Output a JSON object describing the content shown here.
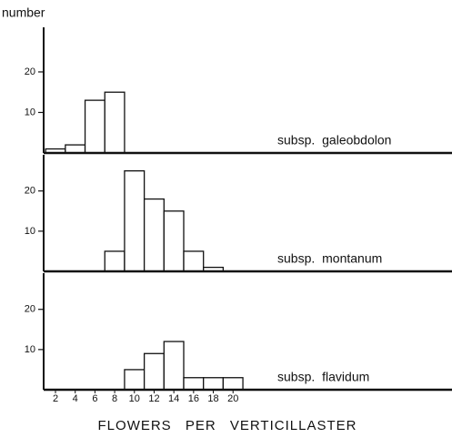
{
  "chart_data": [
    {
      "type": "histogram",
      "title": "subsp. galeobdolon",
      "ylabel": "number",
      "bins": [
        1,
        3,
        5,
        7,
        9,
        11,
        13,
        15,
        17,
        19,
        21
      ],
      "counts": [
        1,
        2,
        13,
        15,
        0,
        0,
        0,
        0,
        0,
        0
      ],
      "ylim": [
        0,
        31
      ],
      "yticks": [
        10,
        20
      ],
      "xlim": [
        0.8,
        42.2
      ],
      "color": "#ffffff"
    },
    {
      "type": "histogram",
      "title": "subsp. montanum",
      "bins": [
        1,
        3,
        5,
        7,
        9,
        11,
        13,
        15,
        17,
        19,
        21
      ],
      "counts": [
        0,
        0,
        0,
        5,
        25,
        18,
        15,
        5,
        1,
        0
      ],
      "ylim": [
        0,
        29
      ],
      "yticks": [
        10,
        20
      ],
      "xlim": [
        0.8,
        42.2
      ],
      "color": "#ffffff"
    },
    {
      "type": "histogram",
      "title": "subsp. flavidum",
      "xlabel": "FLOWERS PER VERTICILLASTER",
      "bins": [
        1,
        3,
        5,
        7,
        9,
        11,
        13,
        15,
        17,
        19,
        21
      ],
      "counts": [
        0,
        0,
        0,
        0,
        5,
        9,
        12,
        3,
        3,
        3
      ],
      "ylim": [
        0,
        29
      ],
      "yticks": [
        10,
        20
      ],
      "xlim": [
        0.8,
        42.2
      ],
      "xticks": [
        2,
        4,
        6,
        8,
        10,
        12,
        14,
        16,
        18,
        20
      ],
      "color": "#ffffff"
    }
  ]
}
